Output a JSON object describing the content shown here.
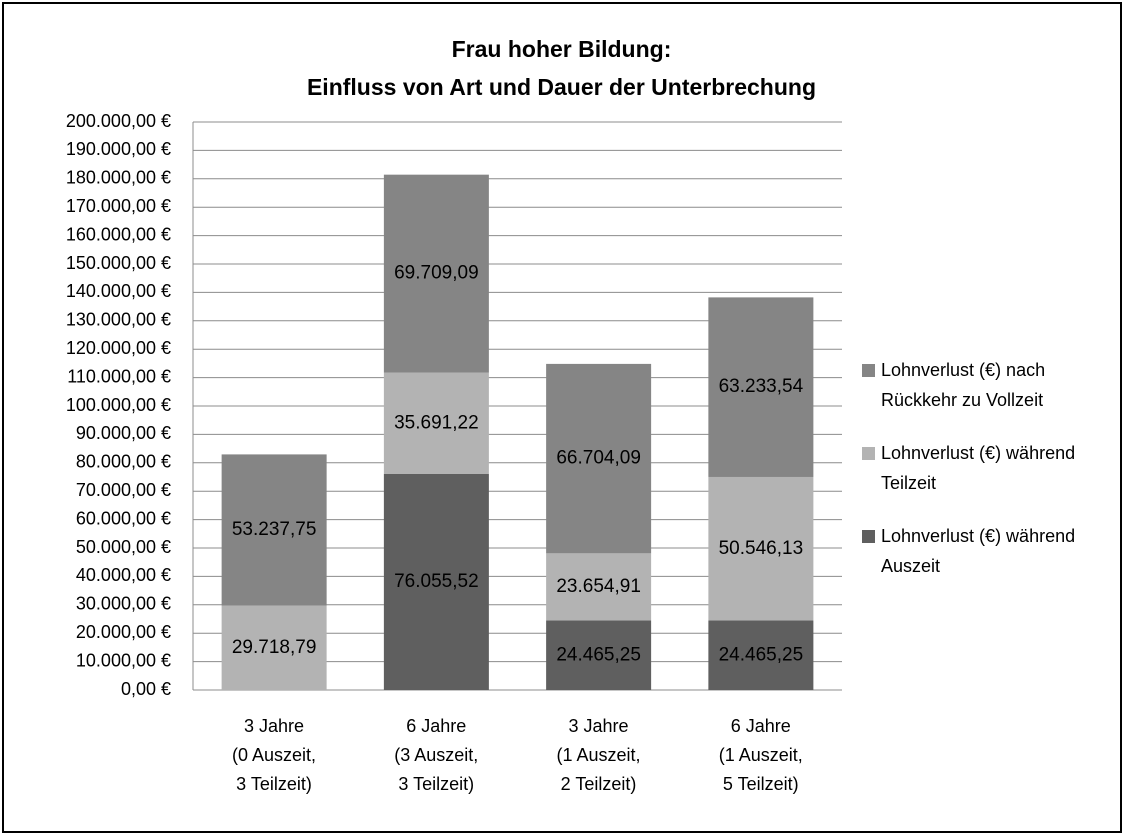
{
  "chart_data": {
    "type": "stacked_bar",
    "title": "Frau hoher Bildung:\nEinfluss von Art und Dauer der Unterbrechung",
    "categories": [
      "3 Jahre\n(0 Auszeit,\n3 Teilzeit)",
      "6 Jahre\n(3 Auszeit,\n3 Teilzeit)",
      "3 Jahre\n(1 Auszeit,\n2 Teilzeit)",
      "6 Jahre\n(1 Auszeit,\n5 Teilzeit)"
    ],
    "series": [
      {
        "name": "Lohnverlust (€) während Auszeit",
        "color": "#5f5f5f",
        "values": [
          null,
          76055.52,
          24465.25,
          24465.25
        ],
        "value_labels": [
          null,
          "76.055,52",
          "24.465,25",
          "24.465,25"
        ]
      },
      {
        "name": "Lohnverlust (€) während Teilzeit",
        "color": "#b3b3b3",
        "values": [
          29718.79,
          35691.22,
          23654.91,
          50546.13
        ],
        "value_labels": [
          "29.718,79",
          "35.691,22",
          "23.654,91",
          "50.546,13"
        ]
      },
      {
        "name": "Lohnverlust (€) nach Rückkehr zu Vollzeit",
        "color": "#858585",
        "values": [
          53237.75,
          69709.09,
          66704.09,
          63233.54
        ],
        "value_labels": [
          "53.237,75",
          "69.709,09",
          "66.704,09",
          "63.233,54"
        ]
      }
    ],
    "ylim": [
      0,
      200000
    ],
    "yticks": [
      {
        "value": 0,
        "label": "0,00 €"
      },
      {
        "value": 10000,
        "label": "10.000,00 €"
      },
      {
        "value": 20000,
        "label": "20.000,00 €"
      },
      {
        "value": 30000,
        "label": "30.000,00 €"
      },
      {
        "value": 40000,
        "label": "40.000,00 €"
      },
      {
        "value": 50000,
        "label": "50.000,00 €"
      },
      {
        "value": 60000,
        "label": "60.000,00 €"
      },
      {
        "value": 70000,
        "label": "70.000,00 €"
      },
      {
        "value": 80000,
        "label": "80.000,00 €"
      },
      {
        "value": 90000,
        "label": "90.000,00 €"
      },
      {
        "value": 100000,
        "label": "100.000,00 €"
      },
      {
        "value": 110000,
        "label": "110.000,00 €"
      },
      {
        "value": 120000,
        "label": "120.000,00 €"
      },
      {
        "value": 130000,
        "label": "130.000,00 €"
      },
      {
        "value": 140000,
        "label": "140.000,00 €"
      },
      {
        "value": 150000,
        "label": "150.000,00 €"
      },
      {
        "value": 160000,
        "label": "160.000,00 €"
      },
      {
        "value": 170000,
        "label": "170.000,00 €"
      },
      {
        "value": 180000,
        "label": "180.000,00 €"
      },
      {
        "value": 190000,
        "label": "190.000,00 €"
      },
      {
        "value": 200000,
        "label": "200.000,00 €"
      }
    ],
    "grid": true,
    "legend": "right"
  }
}
